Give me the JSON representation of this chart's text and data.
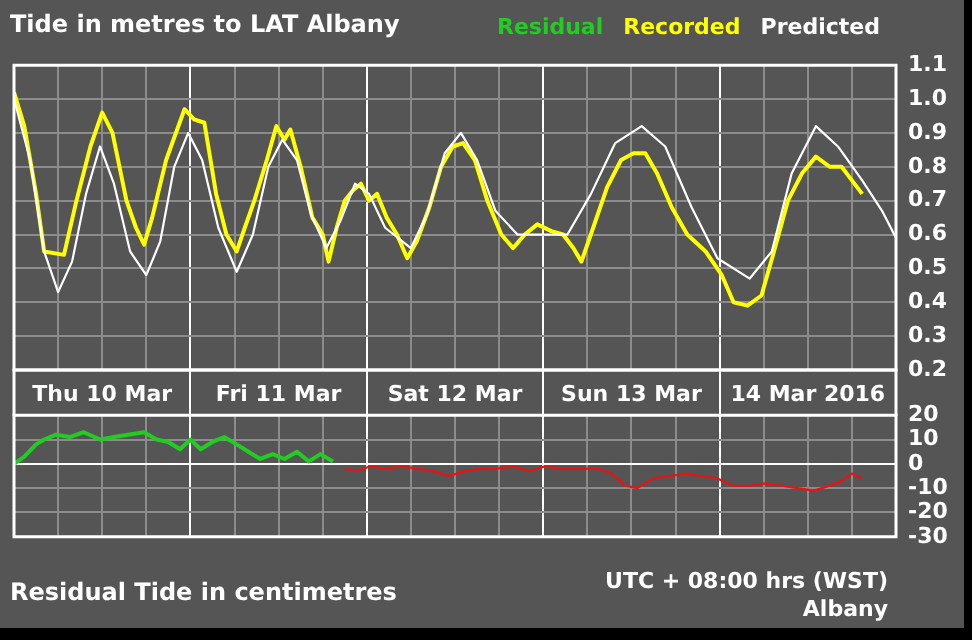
{
  "chart_data": [
    {
      "type": "line",
      "title": "Tide in metres to LAT Albany",
      "xlim": [
        "2016-03-10T00:00",
        "2016-03-15T00:00"
      ],
      "xticks": [
        {
          "value": "2016-03-10T00:00",
          "label": null
        },
        {
          "value": "2016-03-10T06:00",
          "label": null
        },
        {
          "value": "2016-03-10T12:00",
          "label": "Thu 10 Mar"
        },
        {
          "value": "2016-03-10T18:00",
          "label": null
        },
        {
          "value": "2016-03-11T00:00",
          "label": null
        },
        {
          "value": "2016-03-11T06:00",
          "label": null
        },
        {
          "value": "2016-03-11T12:00",
          "label": "Fri 11 Mar"
        },
        {
          "value": "2016-03-11T18:00",
          "label": null
        },
        {
          "value": "2016-03-12T00:00",
          "label": null
        },
        {
          "value": "2016-03-12T06:00",
          "label": null
        },
        {
          "value": "2016-03-12T12:00",
          "label": "Sat 12 Mar"
        },
        {
          "value": "2016-03-12T18:00",
          "label": null
        },
        {
          "value": "2016-03-13T00:00",
          "label": null
        },
        {
          "value": "2016-03-13T06:00",
          "label": null
        },
        {
          "value": "2016-03-13T12:00",
          "label": "Sun 13 Mar"
        },
        {
          "value": "2016-03-13T18:00",
          "label": null
        },
        {
          "value": "2016-03-14T00:00",
          "label": null
        },
        {
          "value": "2016-03-14T06:00",
          "label": null
        },
        {
          "value": "2016-03-14T12:00",
          "label": "14 Mar 2016"
        },
        {
          "value": "2016-03-14T18:00",
          "label": null
        },
        {
          "value": "2016-03-15T00:00",
          "label": null
        }
      ],
      "ylim": [
        0.2,
        1.1
      ],
      "yticks": [
        0.2,
        0.3,
        0.4,
        0.5,
        0.6,
        0.7,
        0.8,
        0.9,
        {
          "value": 1,
          "label": "1.0"
        },
        1.1
      ],
      "grid": true,
      "legend": "top right",
      "marker": "none",
      "line_style": "solid",
      "series": [
        {
          "name": "Recorded",
          "color": "#ffff00",
          "x": [
            "2016-03-10T00:00",
            "2016-03-10T01:24",
            "2016-03-10T03:00",
            "2016-03-10T04:06",
            "2016-03-10T06:48",
            "2016-03-10T08:30",
            "2016-03-10T10:24",
            "2016-03-10T12:00",
            "2016-03-10T13:24",
            "2016-03-10T15:18",
            "2016-03-10T16:36",
            "2016-03-10T17:42",
            "2016-03-10T18:48",
            "2016-03-10T20:42",
            "2016-03-10T23:12",
            "2016-03-11T00:30",
            "2016-03-11T01:54",
            "2016-03-11T03:30",
            "2016-03-11T04:54",
            "2016-03-11T06:18",
            "2016-03-11T07:24",
            "2016-03-11T08:42",
            "2016-03-11T10:24",
            "2016-03-11T11:42",
            "2016-03-11T12:48",
            "2016-03-11T13:36",
            "2016-03-11T15:00",
            "2016-03-11T16:36",
            "2016-03-11T18:00",
            "2016-03-11T18:48",
            "2016-03-11T19:54",
            "2016-03-11T21:00",
            "2016-03-11T22:06",
            "2016-03-11T23:12",
            "2016-03-12T00:18",
            "2016-03-12T01:24",
            "2016-03-12T02:42",
            "2016-03-12T04:06",
            "2016-03-12T05:30",
            "2016-03-12T06:48",
            "2016-03-12T08:30",
            "2016-03-12T10:06",
            "2016-03-12T11:42",
            "2016-03-12T13:06",
            "2016-03-12T14:42",
            "2016-03-12T16:24",
            "2016-03-12T18:18",
            "2016-03-12T19:54",
            "2016-03-12T21:30",
            "2016-03-12T23:12",
            "2016-03-13T01:06",
            "2016-03-13T02:42",
            "2016-03-13T04:06",
            "2016-03-13T05:12",
            "2016-03-13T06:48",
            "2016-03-13T08:42",
            "2016-03-13T10:36",
            "2016-03-13T12:18",
            "2016-03-13T13:54",
            "2016-03-13T15:30",
            "2016-03-13T17:30",
            "2016-03-13T19:36",
            "2016-03-13T22:06",
            "2016-03-14T00:18",
            "2016-03-14T01:54",
            "2016-03-14T03:48",
            "2016-03-14T05:42",
            "2016-03-14T07:24",
            "2016-03-14T09:18",
            "2016-03-14T11:12",
            "2016-03-14T13:06",
            "2016-03-14T15:00",
            "2016-03-14T16:36",
            "2016-03-14T18:00",
            "2016-03-14T19:24"
          ],
          "values": [
            1.02,
            0.92,
            0.72,
            0.55,
            0.54,
            0.7,
            0.86,
            0.96,
            0.9,
            0.7,
            0.62,
            0.57,
            0.65,
            0.82,
            0.97,
            0.94,
            0.93,
            0.72,
            0.6,
            0.55,
            0.62,
            0.7,
            0.82,
            0.92,
            0.88,
            0.91,
            0.8,
            0.65,
            0.6,
            0.52,
            0.62,
            0.7,
            0.73,
            0.75,
            0.7,
            0.72,
            0.65,
            0.6,
            0.53,
            0.58,
            0.68,
            0.8,
            0.86,
            0.87,
            0.82,
            0.7,
            0.6,
            0.56,
            0.6,
            0.63,
            0.61,
            0.6,
            0.56,
            0.52,
            0.62,
            0.74,
            0.82,
            0.84,
            0.84,
            0.78,
            0.68,
            0.6,
            0.55,
            0.48,
            0.4,
            0.39,
            0.42,
            0.55,
            0.7,
            0.78,
            0.83,
            0.8,
            0.8,
            0.76,
            0.72
          ]
        },
        {
          "name": "Predicted",
          "color": "#ffffff",
          "x": [
            "2016-03-10T00:00",
            "2016-03-10T02:12",
            "2016-03-10T04:06",
            "2016-03-10T06:00",
            "2016-03-10T07:54",
            "2016-03-10T09:48",
            "2016-03-10T11:42",
            "2016-03-10T13:36",
            "2016-03-10T15:48",
            "2016-03-10T18:00",
            "2016-03-10T19:54",
            "2016-03-10T21:48",
            "2016-03-10T23:42",
            "2016-03-11T01:36",
            "2016-03-11T03:48",
            "2016-03-11T06:18",
            "2016-03-11T08:30",
            "2016-03-11T10:36",
            "2016-03-11T12:30",
            "2016-03-11T14:30",
            "2016-03-11T16:24",
            "2016-03-11T18:30",
            "2016-03-11T20:24",
            "2016-03-11T22:24",
            "2016-03-12T00:18",
            "2016-03-12T02:30",
            "2016-03-12T06:00",
            "2016-03-12T08:12",
            "2016-03-12T10:36",
            "2016-03-12T12:48",
            "2016-03-12T15:00",
            "2016-03-12T17:30",
            "2016-03-12T20:30",
            "2016-03-13T00:00",
            "2016-03-13T03:18",
            "2016-03-13T06:30",
            "2016-03-13T09:48",
            "2016-03-13T13:24",
            "2016-03-13T16:36",
            "2016-03-13T20:12",
            "2016-03-13T23:42",
            "2016-03-14T04:06",
            "2016-03-14T07:06",
            "2016-03-14T09:48",
            "2016-03-14T13:06",
            "2016-03-14T16:06",
            "2016-03-14T19:24",
            "2016-03-14T22:06",
            "2016-03-15T00:00"
          ],
          "values": [
            1.0,
            0.82,
            0.55,
            0.43,
            0.52,
            0.72,
            0.86,
            0.75,
            0.55,
            0.48,
            0.58,
            0.8,
            0.9,
            0.82,
            0.62,
            0.49,
            0.6,
            0.8,
            0.88,
            0.82,
            0.66,
            0.56,
            0.64,
            0.75,
            0.72,
            0.62,
            0.56,
            0.66,
            0.84,
            0.9,
            0.82,
            0.67,
            0.6,
            0.6,
            0.6,
            0.72,
            0.87,
            0.92,
            0.86,
            0.68,
            0.53,
            0.47,
            0.55,
            0.78,
            0.92,
            0.86,
            0.76,
            0.67,
            0.59
          ]
        }
      ]
    },
    {
      "type": "line",
      "title": "Residual Tide in centimetres",
      "annotations": [
        "UTC + 08:00 hrs (WST)",
        "Albany"
      ],
      "xlim": [
        "2016-03-10T00:00",
        "2016-03-15T00:00"
      ],
      "xticks": [
        {
          "value": "2016-03-10T00:00",
          "label": null
        },
        {
          "value": "2016-03-10T06:00",
          "label": null
        },
        {
          "value": "2016-03-10T12:00",
          "label": null
        },
        {
          "value": "2016-03-10T18:00",
          "label": null
        },
        {
          "value": "2016-03-11T00:00",
          "label": null
        },
        {
          "value": "2016-03-11T06:00",
          "label": null
        },
        {
          "value": "2016-03-11T12:00",
          "label": null
        },
        {
          "value": "2016-03-11T18:00",
          "label": null
        },
        {
          "value": "2016-03-12T00:00",
          "label": null
        },
        {
          "value": "2016-03-12T06:00",
          "label": null
        },
        {
          "value": "2016-03-12T12:00",
          "label": null
        },
        {
          "value": "2016-03-12T18:00",
          "label": null
        },
        {
          "value": "2016-03-13T00:00",
          "label": null
        },
        {
          "value": "2016-03-13T06:00",
          "label": null
        },
        {
          "value": "2016-03-13T12:00",
          "label": null
        },
        {
          "value": "2016-03-13T18:00",
          "label": null
        },
        {
          "value": "2016-03-14T00:00",
          "label": null
        },
        {
          "value": "2016-03-14T06:00",
          "label": null
        },
        {
          "value": "2016-03-14T12:00",
          "label": null
        },
        {
          "value": "2016-03-14T18:00",
          "label": null
        },
        {
          "value": "2016-03-15T00:00",
          "label": null
        }
      ],
      "ylim": [
        -30,
        20
      ],
      "yticks": [
        -30,
        -20,
        -10,
        0,
        10,
        20
      ],
      "tick_labels": "y",
      "grid": true,
      "legend": "top right",
      "marker": "none",
      "line_style": "solid",
      "series": [
        {
          "name": "Residual",
          "color": "#22cc22",
          "x": [
            "2016-03-10T00:00",
            "2016-03-10T01:24",
            "2016-03-10T03:00",
            "2016-03-10T04:06",
            "2016-03-10T05:42",
            "2016-03-10T07:36",
            "2016-03-10T09:30",
            "2016-03-10T11:42",
            "2016-03-10T13:36",
            "2016-03-10T15:30",
            "2016-03-10T17:42",
            "2016-03-10T19:24",
            "2016-03-10T21:00",
            "2016-03-10T22:36",
            "2016-03-11T00:00",
            "2016-03-11T01:24",
            "2016-03-11T03:00",
            "2016-03-11T04:36",
            "2016-03-11T06:18",
            "2016-03-11T07:54",
            "2016-03-11T09:30",
            "2016-03-11T11:12",
            "2016-03-11T12:48",
            "2016-03-11T14:30",
            "2016-03-11T16:06",
            "2016-03-11T17:42",
            "2016-03-11T19:24"
          ],
          "values": [
            0,
            3,
            8,
            10,
            12,
            11,
            13,
            10,
            11,
            12,
            13,
            10,
            9,
            6,
            10,
            6,
            9,
            11,
            8,
            5,
            2,
            4,
            2,
            5,
            1,
            4,
            1
          ]
        },
        {
          "color": "#ee1111",
          "x": [
            "2016-03-11T21:00",
            "2016-03-11T22:36",
            "2016-03-12T00:30",
            "2016-03-12T02:30",
            "2016-03-12T04:36",
            "2016-03-12T06:48",
            "2016-03-12T09:00",
            "2016-03-12T11:12",
            "2016-03-12T13:24",
            "2016-03-12T15:30",
            "2016-03-12T17:42",
            "2016-03-12T19:54",
            "2016-03-12T22:06",
            "2016-03-13T00:18",
            "2016-03-13T02:30",
            "2016-03-13T05:12",
            "2016-03-13T07:24",
            "2016-03-13T09:18",
            "2016-03-13T11:12",
            "2016-03-13T12:48",
            "2016-03-13T15:00",
            "2016-03-13T17:12",
            "2016-03-13T19:24",
            "2016-03-13T21:36",
            "2016-03-13T23:42",
            "2016-03-14T01:54",
            "2016-03-14T04:06",
            "2016-03-14T06:18",
            "2016-03-14T08:30",
            "2016-03-14T10:36",
            "2016-03-14T12:48",
            "2016-03-14T15:00",
            "2016-03-14T16:36",
            "2016-03-14T18:00",
            "2016-03-14T19:24"
          ],
          "values": [
            -2,
            -3,
            -1,
            -2,
            -1,
            -2,
            -3,
            -5,
            -3,
            -2,
            -2,
            -1,
            -3,
            -1,
            -2,
            -2,
            -2,
            -4,
            -9,
            -10,
            -6,
            -5,
            -4,
            -5,
            -6,
            -9,
            -9,
            -8,
            -9,
            -10,
            -11,
            -9,
            -7,
            -4,
            -6
          ]
        }
      ]
    }
  ]
}
